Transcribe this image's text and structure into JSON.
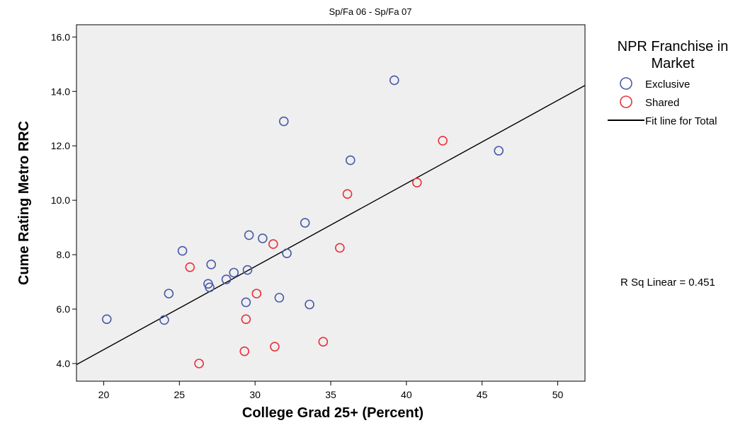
{
  "chart_data": {
    "type": "scatter",
    "title": "Sp/Fa 06 - Sp/Fa 07",
    "xlabel": "College Grad 25+ (Percent)",
    "ylabel": "Cume Rating Metro RRC",
    "xlim": [
      18.2,
      51.8
    ],
    "ylim": [
      3.35,
      16.45
    ],
    "x_ticks": [
      20,
      25,
      30,
      35,
      40,
      45,
      50
    ],
    "y_ticks": [
      4.0,
      6.0,
      8.0,
      10.0,
      12.0,
      14.0,
      16.0
    ],
    "x_tick_labels": [
      "20",
      "25",
      "30",
      "35",
      "40",
      "45",
      "50"
    ],
    "y_tick_labels": [
      "4.0",
      "6.0",
      "8.0",
      "10.0",
      "12.0",
      "14.0",
      "16.0"
    ],
    "legend": {
      "title": "NPR Franchise in Market",
      "position": "right",
      "fit_label": "Fit line for Total"
    },
    "series": [
      {
        "name": "Exclusive",
        "color": "#4a5aa8",
        "points": [
          {
            "x": 20.2,
            "y": 5.63
          },
          {
            "x": 24.0,
            "y": 5.6
          },
          {
            "x": 24.3,
            "y": 6.57
          },
          {
            "x": 25.2,
            "y": 8.14
          },
          {
            "x": 26.9,
            "y": 6.93
          },
          {
            "x": 27.0,
            "y": 6.8
          },
          {
            "x": 27.1,
            "y": 7.64
          },
          {
            "x": 28.1,
            "y": 7.09
          },
          {
            "x": 28.6,
            "y": 7.34
          },
          {
            "x": 29.4,
            "y": 6.25
          },
          {
            "x": 29.5,
            "y": 7.44
          },
          {
            "x": 29.6,
            "y": 8.72
          },
          {
            "x": 30.5,
            "y": 8.6
          },
          {
            "x": 31.6,
            "y": 6.42
          },
          {
            "x": 31.9,
            "y": 12.9
          },
          {
            "x": 32.1,
            "y": 8.05
          },
          {
            "x": 33.3,
            "y": 9.17
          },
          {
            "x": 33.6,
            "y": 6.17
          },
          {
            "x": 36.3,
            "y": 11.47
          },
          {
            "x": 39.2,
            "y": 14.41
          },
          {
            "x": 46.1,
            "y": 11.82
          }
        ]
      },
      {
        "name": "Shared",
        "color": "#e8333a",
        "points": [
          {
            "x": 25.7,
            "y": 7.54
          },
          {
            "x": 26.3,
            "y": 4.0
          },
          {
            "x": 29.3,
            "y": 4.45
          },
          {
            "x": 29.4,
            "y": 5.63
          },
          {
            "x": 30.1,
            "y": 6.57
          },
          {
            "x": 31.2,
            "y": 8.39
          },
          {
            "x": 31.3,
            "y": 4.62
          },
          {
            "x": 34.5,
            "y": 4.8
          },
          {
            "x": 35.6,
            "y": 8.25
          },
          {
            "x": 36.1,
            "y": 10.23
          },
          {
            "x": 40.7,
            "y": 10.65
          },
          {
            "x": 42.4,
            "y": 12.19
          }
        ]
      }
    ],
    "fit_line": {
      "name": "Fit line for Total",
      "x": [
        18.2,
        51.8
      ],
      "y": [
        3.96,
        14.22
      ]
    },
    "annotation": "R Sq Linear = 0.451",
    "grid": false
  }
}
